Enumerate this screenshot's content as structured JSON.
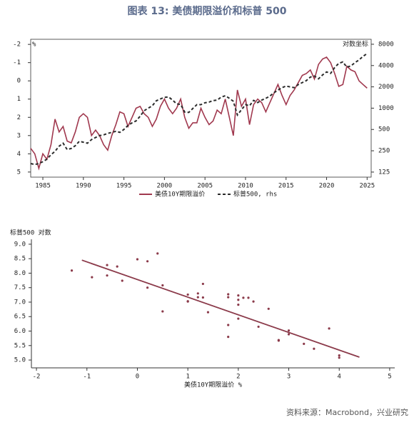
{
  "title": "图表 13: 美债期限溢价和标普 500",
  "source": "资料来源：Macrobond，兴业研究",
  "chart_data": [
    {
      "type": "line",
      "ylabel": "%",
      "y2label": "对数坐标",
      "y2log": true,
      "x": [
        1983.5,
        1984,
        1984.5,
        1985,
        1985.5,
        1986,
        1986.5,
        1987,
        1987.5,
        1988,
        1988.5,
        1989,
        1989.5,
        1990,
        1990.5,
        1991,
        1991.5,
        1992,
        1992.5,
        1993,
        1993.5,
        1994,
        1994.5,
        1995,
        1995.5,
        1996,
        1996.5,
        1997,
        1997.5,
        1998,
        1998.5,
        1999,
        1999.5,
        2000,
        2000.5,
        2001,
        2001.5,
        2002,
        2002.5,
        2003,
        2003.5,
        2004,
        2004.5,
        2005,
        2005.5,
        2006,
        2006.5,
        2007,
        2007.5,
        2008,
        2008.5,
        2009,
        2009.5,
        2010,
        2010.5,
        2011,
        2011.5,
        2012,
        2012.5,
        2013,
        2013.5,
        2014,
        2014.5,
        2015,
        2015.5,
        2016,
        2016.5,
        2017,
        2017.5,
        2018,
        2018.5,
        2019,
        2019.5,
        2020,
        2020.5,
        2021,
        2021.5,
        2022,
        2022.5,
        2023,
        2023.5,
        2024,
        2024.5,
        2025
      ],
      "series": [
        {
          "name": "美债10Y期限溢价",
          "color": "#a0384e",
          "values": [
            3.7,
            4.0,
            4.8,
            4.0,
            4.3,
            3.5,
            2.1,
            2.8,
            2.5,
            3.3,
            3.4,
            2.8,
            2.0,
            1.8,
            2.0,
            3.0,
            2.7,
            3.0,
            3.5,
            3.8,
            3.0,
            2.4,
            1.7,
            1.8,
            2.5,
            2.0,
            1.5,
            1.4,
            1.8,
            2.0,
            2.5,
            2.1,
            1.4,
            1.0,
            1.5,
            1.8,
            1.5,
            1.0,
            2.0,
            2.6,
            2.3,
            2.3,
            1.5,
            2.0,
            2.4,
            2.2,
            1.6,
            1.8,
            1.0,
            2.0,
            3.0,
            0.5,
            1.4,
            1.0,
            2.4,
            1.3,
            1.0,
            1.2,
            1.7,
            1.2,
            0.7,
            0.2,
            0.8,
            1.3,
            0.8,
            0.5,
            0.1,
            -0.3,
            -0.4,
            -0.6,
            -0.1,
            -0.9,
            -1.2,
            -1.3,
            -1.0,
            -0.4,
            0.3,
            0.2,
            -0.8,
            -0.6,
            -0.5,
            0.0,
            0.2,
            0.4
          ]
        },
        {
          "name": "标普500, rhs",
          "color": "#2b2b2b",
          "dashed": true,
          "axis": "y2",
          "values": [
            165,
            160,
            165,
            175,
            190,
            220,
            245,
            290,
            320,
            260,
            270,
            295,
            340,
            330,
            320,
            360,
            385,
            410,
            420,
            440,
            455,
            470,
            455,
            500,
            570,
            620,
            660,
            770,
            920,
            1000,
            1080,
            1270,
            1350,
            1420,
            1440,
            1300,
            1150,
            1130,
            880,
            870,
            990,
            1120,
            1120,
            1190,
            1220,
            1280,
            1300,
            1430,
            1500,
            1380,
            1250,
            800,
            950,
            1120,
            1080,
            1290,
            1200,
            1300,
            1380,
            1480,
            1650,
            1800,
            1950,
            2050,
            2000,
            1950,
            2150,
            2300,
            2450,
            2750,
            2850,
            2600,
            2950,
            3250,
            3100,
            3750,
            4300,
            4500,
            3800,
            3950,
            4400,
            4800,
            5400,
            5900
          ]
        }
      ],
      "xlim": [
        1983.5,
        2025.5
      ],
      "xticks": [
        1985,
        1990,
        1995,
        2000,
        2005,
        2010,
        2015,
        2020,
        2025
      ],
      "ylim": [
        5.28,
        -2.28
      ],
      "yticks": [
        -2,
        -1,
        0,
        1,
        2,
        3,
        4,
        5
      ],
      "y2lim": [
        106,
        9400
      ],
      "y2ticks": [
        125,
        250,
        500,
        1000,
        2000,
        4000,
        8000
      ]
    },
    {
      "type": "scatter",
      "ylabel": "标普500 对数",
      "xlabel": "美债10Y期限溢价 %",
      "color": "#8b3a4a",
      "x": [
        4.0,
        4.0,
        3.5,
        2.8,
        3.3,
        2.8,
        1.8,
        3.0,
        3.0,
        3.8,
        2.4,
        1.8,
        2.0,
        1.4,
        2.0,
        2.1,
        1.0,
        1.8,
        1.0,
        2.6,
        2.3,
        2.0,
        2.2,
        1.8,
        2.0,
        0.5,
        1.0,
        1.3,
        1.2,
        1.2,
        0.2,
        1.3,
        0.5,
        -0.3,
        -0.6,
        -0.9,
        -1.3,
        -0.4,
        0.2,
        -0.6,
        0.0,
        0.4
      ],
      "values": [
        5.08,
        5.16,
        5.39,
        5.67,
        5.56,
        5.69,
        5.8,
        5.89,
        6.02,
        6.09,
        6.15,
        6.21,
        6.43,
        6.65,
        6.91,
        7.15,
        7.26,
        7.17,
        7.03,
        6.77,
        7.02,
        7.08,
        7.15,
        7.27,
        7.23,
        6.68,
        7.02,
        7.16,
        7.17,
        7.3,
        7.5,
        7.63,
        7.58,
        7.74,
        7.92,
        7.86,
        8.09,
        8.23,
        8.41,
        8.28,
        8.48,
        8.68
      ],
      "fit": {
        "color": "#8b3a4a",
        "x": [
          -1.1,
          4.4
        ],
        "values": [
          8.45,
          5.1
        ]
      },
      "xlim": [
        -2.1,
        5.1
      ],
      "xticks": [
        -2,
        -1,
        0,
        1,
        2,
        3,
        4,
        5
      ],
      "ylim": [
        4.73,
        9.17
      ],
      "yticks": [
        {
          "value": 5,
          "label": "5.0"
        },
        {
          "value": 5.5,
          "label": "5.5"
        },
        {
          "value": 6,
          "label": "6.0"
        },
        {
          "value": 6.5,
          "label": "6.5"
        },
        {
          "value": 7,
          "label": "7.0"
        },
        {
          "value": 7.5,
          "label": "7.5"
        },
        {
          "value": 8,
          "label": "8.0"
        },
        {
          "value": 8.5,
          "label": "8.5"
        },
        {
          "value": 9,
          "label": "9.0"
        }
      ]
    }
  ]
}
